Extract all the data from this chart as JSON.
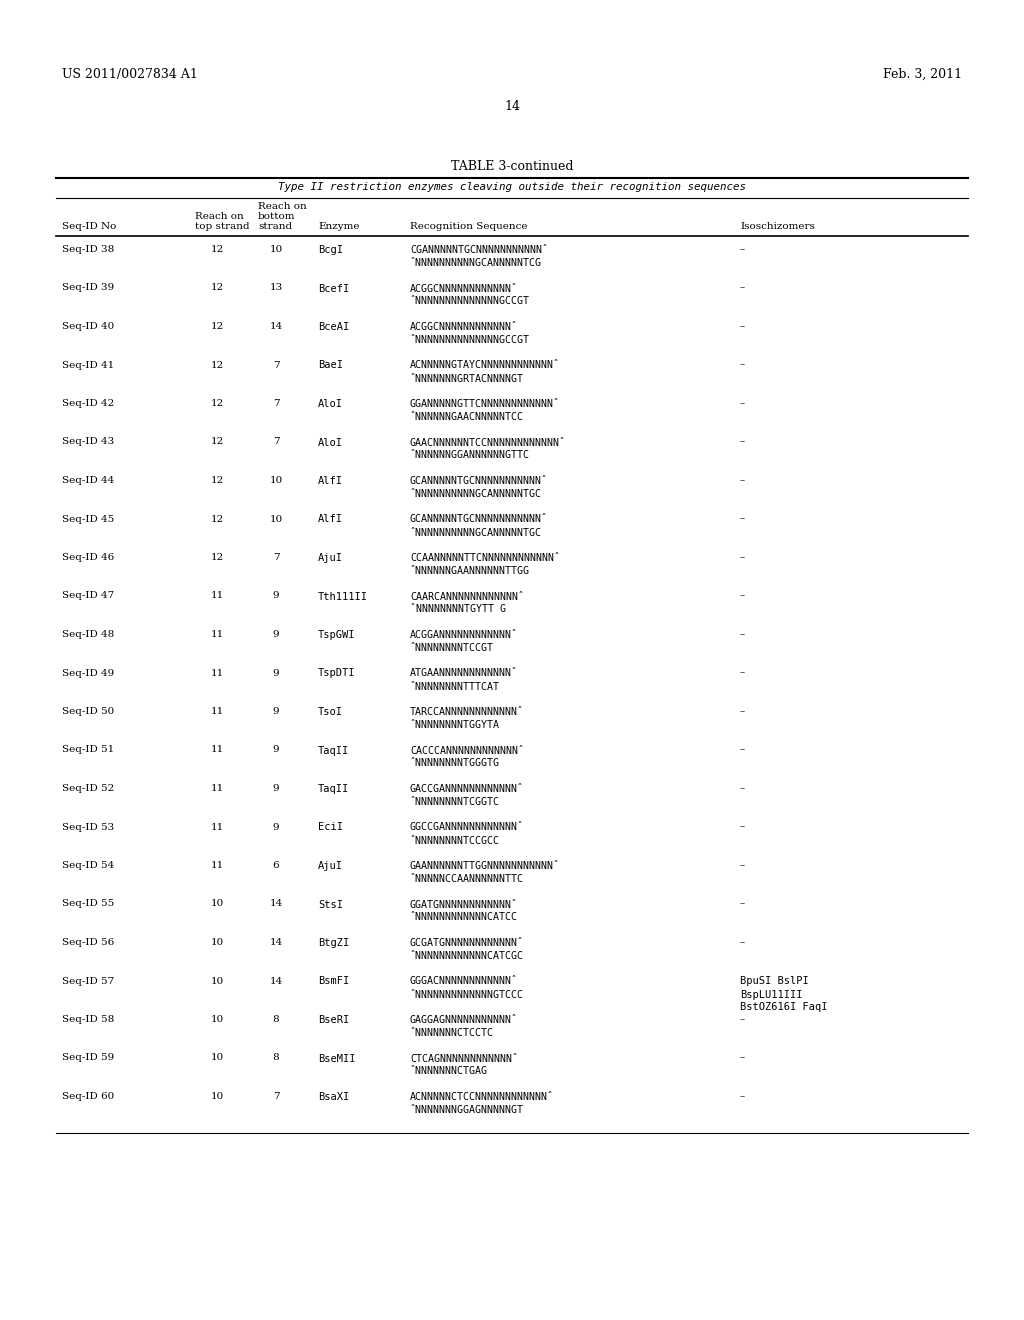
{
  "patent_number": "US 2011/0027834 A1",
  "date": "Feb. 3, 2011",
  "page_number": "14",
  "table_title": "TABLE 3-continued",
  "table_subtitle": "Type II restriction enzymes cleaving outside their recognition sequences",
  "rows": [
    [
      "Seq-ID 38",
      "12",
      "10",
      "BcgI",
      "CGANNNNNTGCNNNNNNNNNNNˆ",
      "ˆNNNNNNNNNNGCANNNNNTCG",
      "–"
    ],
    [
      "Seq-ID 39",
      "12",
      "13",
      "BcefI",
      "ACGGCNNNNNNNNNNNNˆ",
      "ˆNNNNNNNNNNNNNNGCCGT",
      "–"
    ],
    [
      "Seq-ID 40",
      "12",
      "14",
      "BceAI",
      "ACGGCNNNNNNNNNNNNˆ",
      "ˆNNNNNNNNNNNNNNGCCGT",
      "–"
    ],
    [
      "Seq-ID 41",
      "12",
      "7",
      "BaeI",
      "ACNNNNNGTAYCNNNNNNNNNNNNˆ",
      "ˆNNNNNNNGRTACNNNNGT",
      "–"
    ],
    [
      "Seq-ID 42",
      "12",
      "7",
      "AloI",
      "GGANNNNNGTTCNNNNNNNNNNNNˆ",
      "ˆNNNNNNGAACNNNNNTCC",
      "–"
    ],
    [
      "Seq-ID 43",
      "12",
      "7",
      "AloI",
      "GAACNNNNNNTCCNNNNNNNNNNNNˆ",
      "ˆNNNNNNGGANNNNNNGTTC",
      "–"
    ],
    [
      "Seq-ID 44",
      "12",
      "10",
      "AlfI",
      "GCANNNNNTGCNNNNNNNNNNNˆ",
      "ˆNNNNNNNNNNGCANNNNNTGC",
      "–"
    ],
    [
      "Seq-ID 45",
      "12",
      "10",
      "AlfI",
      "GCANNNNNTGCNNNNNNNNNNNˆ",
      "ˆNNNNNNNNNNGCANNNNNTGC",
      "–"
    ],
    [
      "Seq-ID 46",
      "12",
      "7",
      "AjuI",
      "CCAANNNNNTTCNNNNNNNNNNNNˆ",
      "ˆNNNNNNGAANNNNNNTTGG",
      "–"
    ],
    [
      "Seq-ID 47",
      "11",
      "9",
      "Tth111II",
      "CAARCANNNNNNNNNNNNˆ",
      "ˆNNNNNNNNTGYTT G",
      "–"
    ],
    [
      "Seq-ID 48",
      "11",
      "9",
      "TspGWI",
      "ACGGANNNNNNNNNNNNˆ",
      "ˆNNNNNNNNTCCGT",
      "–"
    ],
    [
      "Seq-ID 49",
      "11",
      "9",
      "TspDTI",
      "ATGAANNNNNNNNNNNNˆ",
      "ˆNNNNNNNNTTTCAT",
      "–"
    ],
    [
      "Seq-ID 50",
      "11",
      "9",
      "TsoI",
      "TARCCANNNNNNNNNNNNˆ",
      "ˆNNNNNNNNTGGYTA",
      "–"
    ],
    [
      "Seq-ID 51",
      "11",
      "9",
      "TaqII",
      "CACCCANNNNNNNNNNNNˆ",
      "ˆNNNNNNNNTGGGTG",
      "–"
    ],
    [
      "Seq-ID 52",
      "11",
      "9",
      "TaqII",
      "GACCGANNNNNNNNNNNNˆ",
      "ˆNNNNNNNNTCGGTC",
      "–"
    ],
    [
      "Seq-ID 53",
      "11",
      "9",
      "EciI",
      "GGCCGANNNNNNNNNNNNˆ",
      "ˆNNNNNNNNTCCGCC",
      "–"
    ],
    [
      "Seq-ID 54",
      "11",
      "6",
      "AjuI",
      "GAANNNNNNTTGGNNNNNNNNNNNˆ",
      "ˆNNNNNCCAANNNNNNTTC",
      "–"
    ],
    [
      "Seq-ID 55",
      "10",
      "14",
      "StsI",
      "GGATGNNNNNNNNNNNNˆ",
      "ˆNNNNNNNNNNNNCATCC",
      "–"
    ],
    [
      "Seq-ID 56",
      "10",
      "14",
      "BtgZI",
      "GCGATGNNNNNNNNNNNNˆ",
      "ˆNNNNNNNNNNNNCATCGC",
      "–"
    ],
    [
      "Seq-ID 57",
      "10",
      "14",
      "BsmFI",
      "GGGACNNNNNNNNNNNNˆ",
      "ˆNNNNNNNNNNNNNGTCCC",
      "BpuSI BslPI\nBspLU11III\nBstOZ616I FaqI"
    ],
    [
      "Seq-ID 58",
      "10",
      "8",
      "BseRI",
      "GAGGAGNNNNNNNNNNNˆ",
      "ˆNNNNNNNCTCCTC",
      "–"
    ],
    [
      "Seq-ID 59",
      "10",
      "8",
      "BseMII",
      "CTCAGNNNNNNNNNNNNˆ",
      "ˆNNNNNNNCTGAG",
      "–"
    ],
    [
      "Seq-ID 60",
      "10",
      "7",
      "BsaXI",
      "ACNNNNNCTCCNNNNNNNNNNNNˆ",
      "ˆNNNNNNNGGAGNNNNNGT",
      "–"
    ]
  ],
  "bg_color": "#ffffff",
  "text_color": "#000000"
}
